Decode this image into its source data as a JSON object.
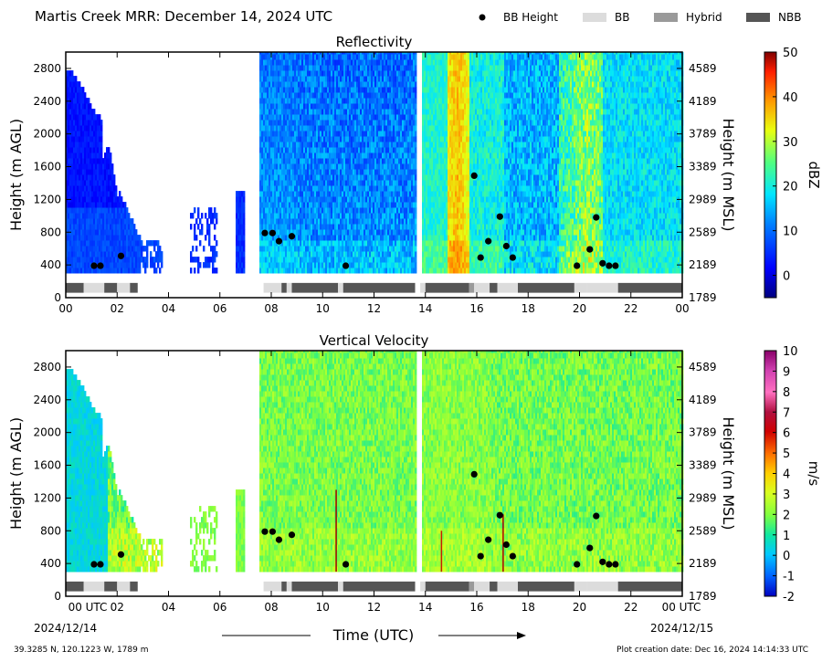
{
  "header": {
    "title": "Martis Creek MRR:  December 14, 2024 UTC",
    "legend": [
      {
        "label": "BB Height",
        "symbol": "dot",
        "color": "#000000"
      },
      {
        "label": "BB",
        "symbol": "box",
        "color": "#dcdcdc"
      },
      {
        "label": "Hybrid",
        "symbol": "box",
        "color": "#9a9a9a"
      },
      {
        "label": "NBB",
        "symbol": "box",
        "color": "#555555"
      }
    ]
  },
  "footer": {
    "location": "39.3285 N, 120.1223 W, 1789 m",
    "created": "Plot creation date: Dec 16, 2024 14:14:33 UTC",
    "start_date": "2024/12/14",
    "end_date": "2024/12/15"
  },
  "chart_data": [
    {
      "type": "heatmap",
      "title": "Reflectivity",
      "xlabel": "",
      "ylabel": "Height (m AGL)",
      "ylabel_right": "Height (m MSL)",
      "xlim": [
        0,
        24
      ],
      "ylim": [
        0,
        3000
      ],
      "x_ticks": [
        "00",
        "02",
        "04",
        "06",
        "08",
        "10",
        "12",
        "14",
        "16",
        "18",
        "20",
        "22",
        "00"
      ],
      "y_ticks": [
        0,
        400,
        800,
        1200,
        1600,
        2000,
        2400,
        2800
      ],
      "y_ticks_right": [
        1789,
        2189,
        2589,
        2989,
        3389,
        3789,
        4189,
        4589
      ],
      "colorbar": {
        "label": "dBZ",
        "min": -5,
        "max": 50,
        "ticks": [
          0,
          10,
          20,
          30,
          40,
          50
        ]
      },
      "bb_height": {
        "x": [
          1.1,
          1.35,
          2.15,
          7.75,
          8.05,
          8.3,
          8.8,
          10.9,
          15.9,
          16.15,
          16.45,
          16.9,
          17.15,
          17.4,
          19.9,
          20.4,
          20.65,
          20.9,
          21.15,
          21.4
        ],
        "y": [
          390,
          390,
          510,
          790,
          790,
          690,
          750,
          390,
          1490,
          490,
          690,
          990,
          630,
          490,
          390,
          590,
          980,
          420,
          390,
          390
        ]
      },
      "bright_band_type": [
        {
          "start": 0.0,
          "end": 0.7,
          "type": "NBB"
        },
        {
          "start": 0.7,
          "end": 1.5,
          "type": "BB"
        },
        {
          "start": 1.5,
          "end": 2.0,
          "type": "NBB"
        },
        {
          "start": 2.0,
          "end": 2.5,
          "type": "BB"
        },
        {
          "start": 2.5,
          "end": 2.8,
          "type": "NBB"
        },
        {
          "start": 7.7,
          "end": 8.4,
          "type": "BB"
        },
        {
          "start": 8.4,
          "end": 8.6,
          "type": "NBB"
        },
        {
          "start": 8.6,
          "end": 8.8,
          "type": "BB"
        },
        {
          "start": 8.8,
          "end": 10.6,
          "type": "NBB"
        },
        {
          "start": 10.6,
          "end": 10.8,
          "type": "BB"
        },
        {
          "start": 10.8,
          "end": 13.6,
          "type": "NBB"
        },
        {
          "start": 13.8,
          "end": 14.0,
          "type": "BB"
        },
        {
          "start": 14.0,
          "end": 15.7,
          "type": "NBB"
        },
        {
          "start": 15.7,
          "end": 15.9,
          "type": "Hybrid"
        },
        {
          "start": 15.9,
          "end": 16.5,
          "type": "BB"
        },
        {
          "start": 16.5,
          "end": 16.8,
          "type": "NBB"
        },
        {
          "start": 16.8,
          "end": 17.6,
          "type": "BB"
        },
        {
          "start": 17.6,
          "end": 19.8,
          "type": "NBB"
        },
        {
          "start": 19.8,
          "end": 20.3,
          "type": "BB"
        },
        {
          "start": 20.3,
          "end": 21.5,
          "type": "BB"
        },
        {
          "start": 21.5,
          "end": 24.0,
          "type": "NBB"
        }
      ]
    },
    {
      "type": "heatmap",
      "title": "Vertical Velocity",
      "xlabel": "Time (UTC)",
      "ylabel": "Height (m AGL)",
      "ylabel_right": "Height (m MSL)",
      "xlim": [
        0,
        24
      ],
      "ylim": [
        0,
        3000
      ],
      "x_ticks": [
        "00 UTC",
        "02",
        "04",
        "06",
        "08",
        "10",
        "12",
        "14",
        "16",
        "18",
        "20",
        "22",
        "00 UTC"
      ],
      "y_ticks": [
        0,
        400,
        800,
        1200,
        1600,
        2000,
        2400,
        2800
      ],
      "y_ticks_right": [
        1789,
        2189,
        2589,
        2989,
        3389,
        3789,
        4189,
        4589
      ],
      "colorbar": {
        "label": "m/s",
        "min": -2,
        "max": 10,
        "ticks": [
          -2,
          -1,
          0,
          1,
          2,
          3,
          4,
          5,
          6,
          7,
          8,
          9,
          10
        ]
      },
      "bb_height": {
        "x": [
          1.1,
          1.35,
          2.15,
          7.75,
          8.05,
          8.3,
          8.8,
          10.9,
          15.9,
          16.15,
          16.45,
          16.9,
          17.15,
          17.4,
          19.9,
          20.4,
          20.65,
          20.9,
          21.15,
          21.4
        ],
        "y": [
          390,
          390,
          510,
          790,
          790,
          690,
          750,
          390,
          1490,
          490,
          690,
          990,
          630,
          490,
          390,
          590,
          980,
          420,
          390,
          390
        ]
      },
      "bright_band_type": [
        {
          "start": 0.0,
          "end": 0.7,
          "type": "NBB"
        },
        {
          "start": 0.7,
          "end": 1.5,
          "type": "BB"
        },
        {
          "start": 1.5,
          "end": 2.0,
          "type": "NBB"
        },
        {
          "start": 2.0,
          "end": 2.5,
          "type": "BB"
        },
        {
          "start": 2.5,
          "end": 2.8,
          "type": "NBB"
        },
        {
          "start": 7.7,
          "end": 8.4,
          "type": "BB"
        },
        {
          "start": 8.4,
          "end": 8.6,
          "type": "NBB"
        },
        {
          "start": 8.6,
          "end": 8.8,
          "type": "BB"
        },
        {
          "start": 8.8,
          "end": 10.6,
          "type": "NBB"
        },
        {
          "start": 10.6,
          "end": 10.8,
          "type": "BB"
        },
        {
          "start": 10.8,
          "end": 13.6,
          "type": "NBB"
        },
        {
          "start": 13.8,
          "end": 14.0,
          "type": "BB"
        },
        {
          "start": 14.0,
          "end": 15.7,
          "type": "NBB"
        },
        {
          "start": 15.7,
          "end": 15.9,
          "type": "Hybrid"
        },
        {
          "start": 15.9,
          "end": 16.5,
          "type": "BB"
        },
        {
          "start": 16.5,
          "end": 16.8,
          "type": "NBB"
        },
        {
          "start": 16.8,
          "end": 17.6,
          "type": "BB"
        },
        {
          "start": 17.6,
          "end": 19.8,
          "type": "NBB"
        },
        {
          "start": 19.8,
          "end": 20.3,
          "type": "BB"
        },
        {
          "start": 20.3,
          "end": 21.5,
          "type": "BB"
        },
        {
          "start": 21.5,
          "end": 24.0,
          "type": "NBB"
        }
      ]
    }
  ]
}
